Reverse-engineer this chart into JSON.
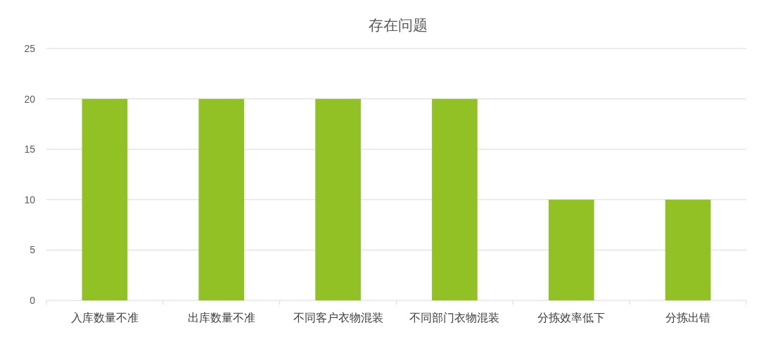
{
  "chart_data": {
    "type": "bar",
    "title": "存在问题",
    "categories": [
      "入库数量不准",
      "出库数量不准",
      "不同客户衣物混装",
      "不同部门衣物混装",
      "分拣效率低下",
      "分拣出错"
    ],
    "values": [
      20,
      20,
      20,
      20,
      10,
      10
    ],
    "color": "#92c126",
    "ylim": [
      0,
      25
    ],
    "yticks": [
      0,
      5,
      10,
      15,
      20,
      25
    ],
    "grid": "y"
  }
}
